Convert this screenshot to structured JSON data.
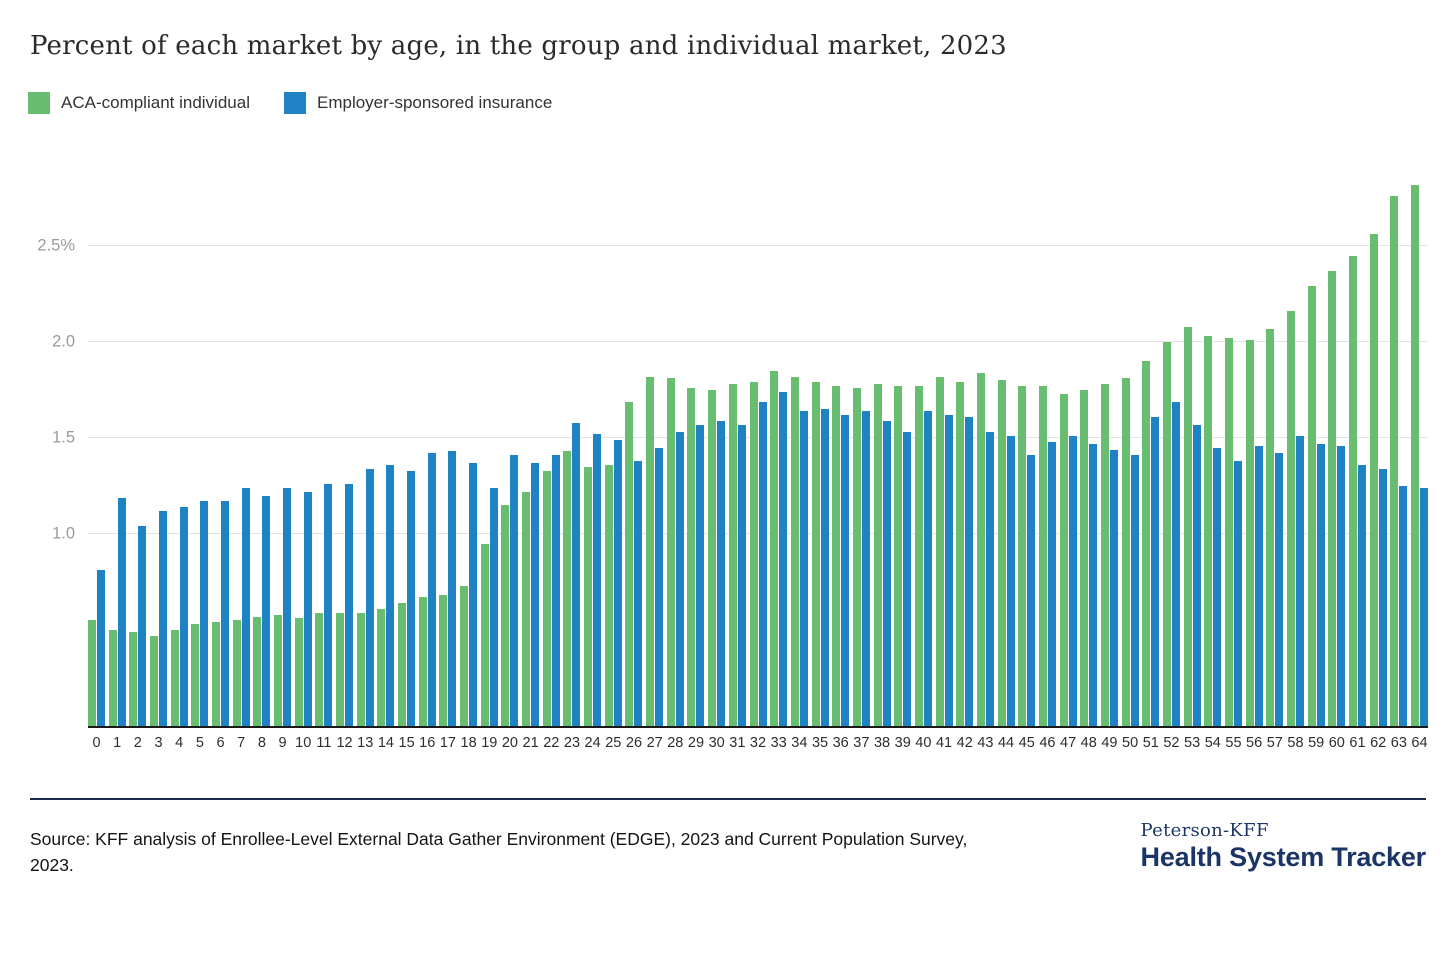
{
  "page": {
    "title": "Percent of each market by age, in the group and individual market, 2023"
  },
  "legend": [
    {
      "label": "ACA-compliant individual",
      "color": "#68BD70"
    },
    {
      "label": "Employer-sponsored insurance",
      "color": "#1E82C5"
    }
  ],
  "footer": {
    "source": "Source: KFF analysis of Enrollee-Level External Data Gather Environment (EDGE), 2023 and Current Population Survey, 2023.",
    "logo_top": "Peterson-KFF",
    "logo_bottom": "Health System Tracker"
  },
  "chart_data": {
    "type": "bar",
    "title": "Percent of each market by age, in the group and individual market, 2023",
    "xlabel": "",
    "ylabel": "",
    "ylim": [
      0,
      2.9
    ],
    "grid": "horizontal",
    "legend_position": "top-left",
    "axis_color": "#191919",
    "gridline_color": "#e3e3e3",
    "yticks": [
      {
        "value": 1.0,
        "label": "1.0"
      },
      {
        "value": 1.5,
        "label": "1.5"
      },
      {
        "value": 2.0,
        "label": "2.0"
      },
      {
        "value": 2.5,
        "label": "2.5%"
      }
    ],
    "categories": [
      0,
      1,
      2,
      3,
      4,
      5,
      6,
      7,
      8,
      9,
      10,
      11,
      12,
      13,
      14,
      15,
      16,
      17,
      18,
      19,
      20,
      21,
      22,
      23,
      24,
      25,
      26,
      27,
      28,
      29,
      30,
      31,
      32,
      33,
      34,
      35,
      36,
      37,
      38,
      39,
      40,
      41,
      42,
      43,
      44,
      45,
      46,
      47,
      48,
      49,
      50,
      51,
      52,
      53,
      54,
      55,
      56,
      57,
      58,
      59,
      60,
      61,
      62,
      63,
      64
    ],
    "series": [
      {
        "name": "ACA-compliant individual",
        "color": "#68BD70",
        "values": [
          0.55,
          0.5,
          0.49,
          0.47,
          0.5,
          0.53,
          0.54,
          0.55,
          0.57,
          0.58,
          0.56,
          0.59,
          0.59,
          0.59,
          0.61,
          0.64,
          0.67,
          0.68,
          0.73,
          0.95,
          1.15,
          1.22,
          1.33,
          1.43,
          1.35,
          1.36,
          1.69,
          1.82,
          1.81,
          1.76,
          1.75,
          1.78,
          1.79,
          1.85,
          1.82,
          1.79,
          1.77,
          1.76,
          1.78,
          1.77,
          1.77,
          1.82,
          1.79,
          1.84,
          1.8,
          1.77,
          1.77,
          1.73,
          1.75,
          1.78,
          1.81,
          1.9,
          2.0,
          2.08,
          2.03,
          2.02,
          2.01,
          2.07,
          2.16,
          2.29,
          2.37,
          2.45,
          2.56,
          2.76,
          2.82
        ]
      },
      {
        "name": "Employer-sponsored insurance",
        "color": "#1E82C5",
        "values": [
          0.81,
          1.19,
          1.04,
          1.12,
          1.14,
          1.17,
          1.17,
          1.24,
          1.2,
          1.24,
          1.22,
          1.26,
          1.26,
          1.34,
          1.36,
          1.33,
          1.42,
          1.43,
          1.37,
          1.24,
          1.41,
          1.37,
          1.41,
          1.58,
          1.52,
          1.49,
          1.38,
          1.45,
          1.53,
          1.57,
          1.59,
          1.57,
          1.69,
          1.74,
          1.64,
          1.65,
          1.62,
          1.64,
          1.59,
          1.53,
          1.64,
          1.62,
          1.61,
          1.53,
          1.51,
          1.41,
          1.48,
          1.51,
          1.47,
          1.44,
          1.41,
          1.61,
          1.69,
          1.57,
          1.45,
          1.38,
          1.46,
          1.42,
          1.51,
          1.47,
          1.46,
          1.36,
          1.34,
          1.25,
          1.24
        ]
      }
    ]
  }
}
